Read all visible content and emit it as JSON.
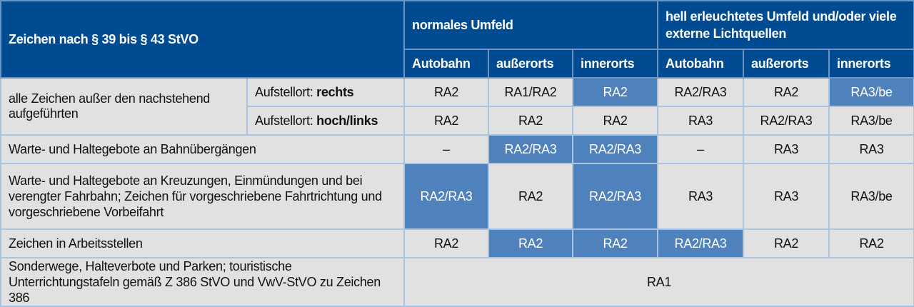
{
  "header": {
    "title": "Zeichen nach § 39 bis § 43 StVO",
    "group1": "normales Umfeld",
    "group2": "hell erleuchtetes Umfeld und/oder viele externe Lichtquellen",
    "cols": [
      "Autobahn",
      "außerorts",
      "innerorts",
      "Autobahn",
      "außerorts",
      "innerorts"
    ]
  },
  "colors": {
    "header": "#004b91",
    "highlight": "#4f81bd",
    "cell": "#e1e1e1"
  },
  "rows": [
    {
      "label": "alle Zeichen außer den nachstehend aufgeführten",
      "sub_prefix": "Aufstellort: ",
      "sub_value": "rechts",
      "cells": [
        "RA2",
        "RA1/RA2",
        "RA2",
        "RA2/RA3",
        "RA2",
        "RA3/be"
      ],
      "highlight": [
        false,
        false,
        true,
        false,
        false,
        true
      ]
    },
    {
      "sub_prefix": "Aufstellort: ",
      "sub_value": "hoch/links",
      "cells": [
        "RA2",
        "RA2",
        "RA2",
        "RA3",
        "RA2/RA3",
        "RA3/be"
      ],
      "highlight": [
        false,
        false,
        false,
        false,
        false,
        false
      ]
    },
    {
      "label": "Warte- und Haltegebote an Bahnübergängen",
      "cells": [
        "–",
        "RA2/RA3",
        "RA2/RA3",
        "–",
        "RA3",
        "RA3"
      ],
      "highlight": [
        false,
        true,
        true,
        false,
        false,
        false
      ]
    },
    {
      "label": "Warte- und Haltegebote an Kreuzungen, Einmündungen und bei verengter Fahrbahn; Zeichen für vorgeschriebene Fahrtrichtung und vorgeschriebene Vorbeifahrt",
      "cells": [
        "RA2/RA3",
        "RA2",
        "RA2/RA3",
        "RA3",
        "RA3",
        "RA3/be"
      ],
      "highlight": [
        true,
        false,
        true,
        false,
        false,
        false
      ]
    },
    {
      "label": "Zeichen in Arbeitsstellen",
      "cells": [
        "RA2",
        "RA2",
        "RA2",
        "RA2/RA3",
        "RA2",
        "RA2"
      ],
      "highlight": [
        false,
        true,
        true,
        true,
        false,
        false
      ]
    },
    {
      "label": "Sonderwege, Halteverbote und Parken; touristische Unterrichtungstafeln gemäß Z 386 StVO und VwV-StVO zu Zeichen 386",
      "merged": "RA1"
    }
  ]
}
